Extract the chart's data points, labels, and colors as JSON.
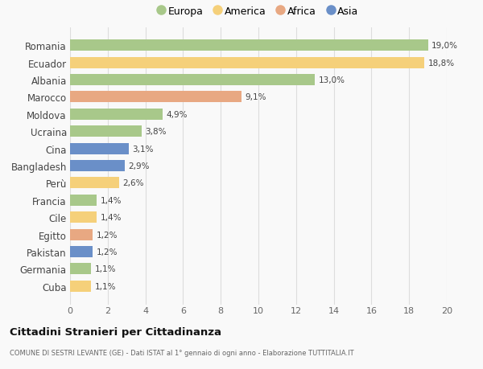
{
  "categories": [
    "Romania",
    "Ecuador",
    "Albania",
    "Marocco",
    "Moldova",
    "Ucraina",
    "Cina",
    "Bangladesh",
    "Perù",
    "Francia",
    "Cile",
    "Egitto",
    "Pakistan",
    "Germania",
    "Cuba"
  ],
  "values": [
    19.0,
    18.8,
    13.0,
    9.1,
    4.9,
    3.8,
    3.1,
    2.9,
    2.6,
    1.4,
    1.4,
    1.2,
    1.2,
    1.1,
    1.1
  ],
  "labels": [
    "19,0%",
    "18,8%",
    "13,0%",
    "9,1%",
    "4,9%",
    "3,8%",
    "3,1%",
    "2,9%",
    "2,6%",
    "1,4%",
    "1,4%",
    "1,2%",
    "1,2%",
    "1,1%",
    "1,1%"
  ],
  "continents": [
    "Europa",
    "America",
    "Europa",
    "Africa",
    "Europa",
    "Europa",
    "Asia",
    "Asia",
    "America",
    "Europa",
    "America",
    "Africa",
    "Asia",
    "Europa",
    "America"
  ],
  "colors": {
    "Europa": "#a8c88a",
    "America": "#f5d07a",
    "Africa": "#e8a882",
    "Asia": "#6a8fc8"
  },
  "legend_order": [
    "Europa",
    "America",
    "Africa",
    "Asia"
  ],
  "xlim": [
    0,
    20
  ],
  "xticks": [
    0,
    2,
    4,
    6,
    8,
    10,
    12,
    14,
    16,
    18,
    20
  ],
  "title": "Cittadini Stranieri per Cittadinanza",
  "subtitle": "COMUNE DI SESTRI LEVANTE (GE) - Dati ISTAT al 1° gennaio di ogni anno - Elaborazione TUTTITALIA.IT",
  "background_color": "#f9f9f9",
  "grid_color": "#dddddd"
}
